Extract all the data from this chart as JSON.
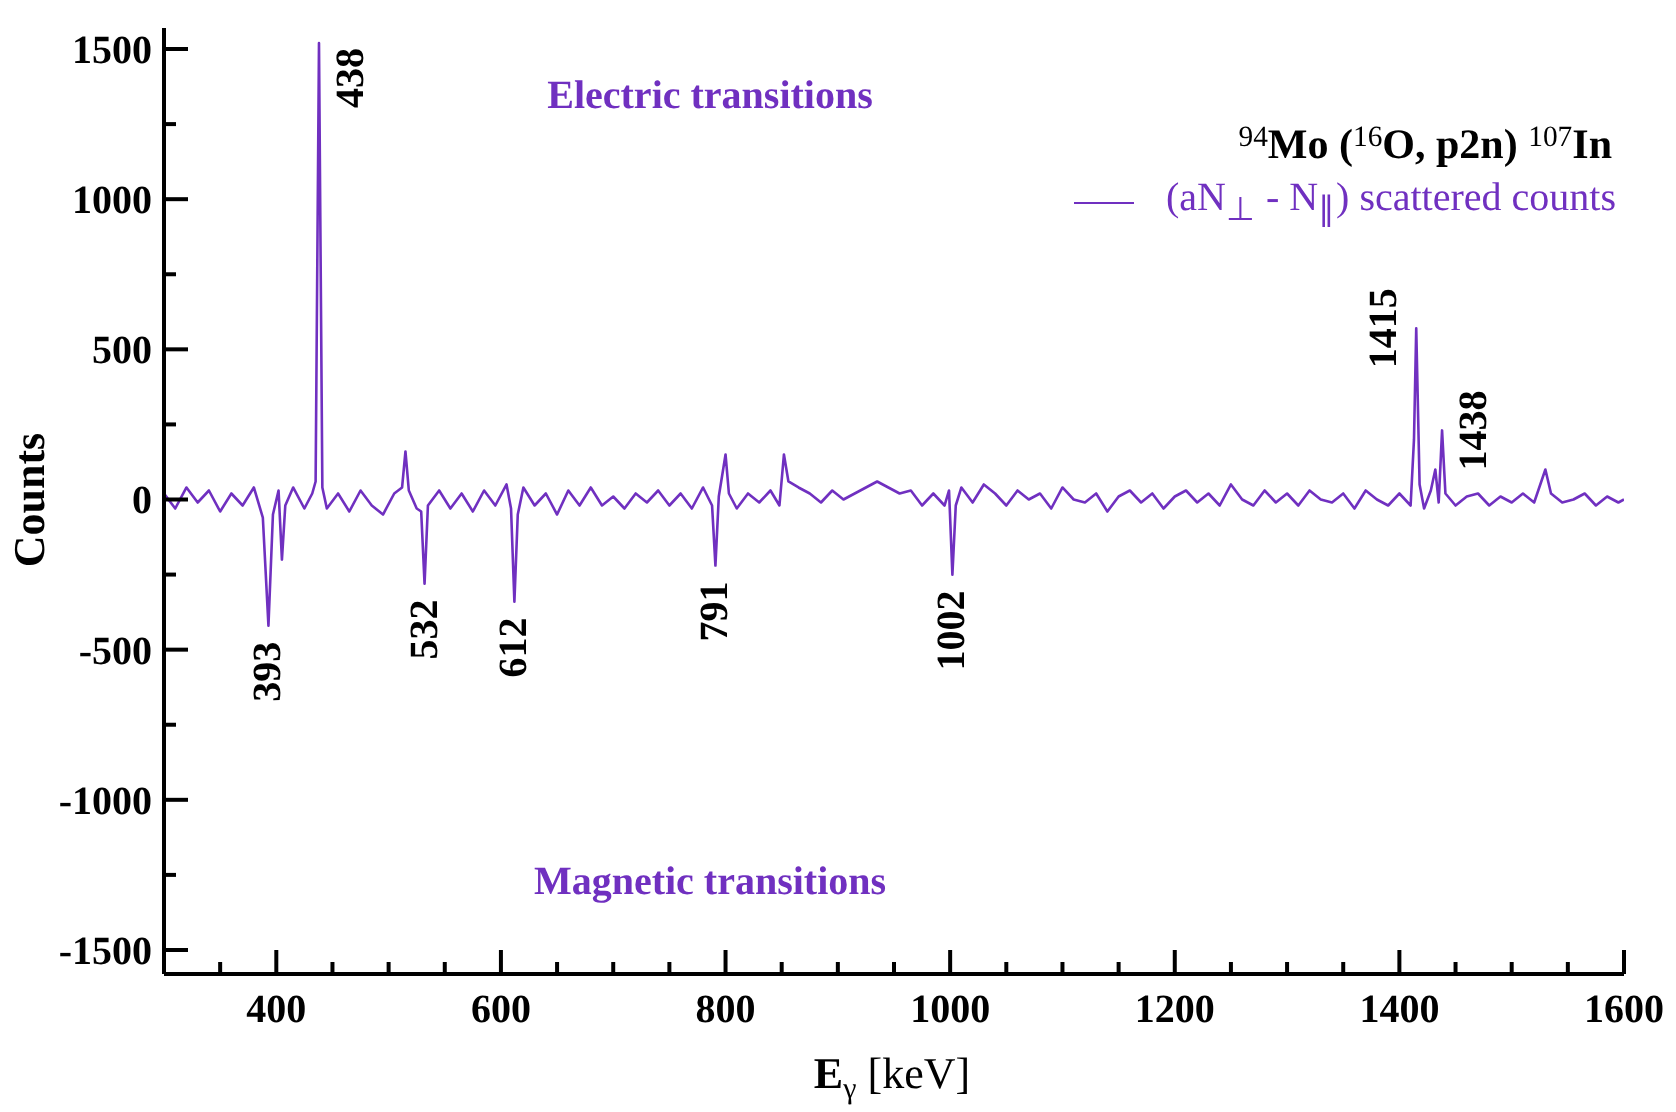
{
  "chart_data": {
    "type": "line",
    "title": "$^{94}$Mo ($^{16}$O, p2n) $^{107}$In",
    "xlabel": "E$_{γ}$ [keV]",
    "ylabel": "Counts",
    "annotations": [
      "Electric transitions",
      "Magnetic transitions",
      {
        "text": "438",
        "x": 438,
        "y": 1520
      },
      {
        "text": "393",
        "x": 393,
        "y": -420
      },
      {
        "text": "532",
        "x": 532,
        "y": -280
      },
      {
        "text": "612",
        "x": 612,
        "y": -340
      },
      {
        "text": "791",
        "x": 791,
        "y": -220
      },
      {
        "text": "1002",
        "x": 1002,
        "y": -250
      },
      {
        "text": "1415",
        "x": 1415,
        "y": 570
      },
      {
        "text": "1438",
        "x": 1438,
        "y": 230
      }
    ],
    "xlim": [
      300,
      1600
    ],
    "xticks": [
      {
        "value": 350,
        "label": null
      },
      400,
      {
        "value": 450,
        "label": null
      },
      {
        "value": 500,
        "label": null
      },
      {
        "value": 550,
        "label": null
      },
      600,
      {
        "value": 650,
        "label": null
      },
      {
        "value": 700,
        "label": null
      },
      {
        "value": 750,
        "label": null
      },
      800,
      {
        "value": 850,
        "label": null
      },
      {
        "value": 900,
        "label": null
      },
      {
        "value": 950,
        "label": null
      },
      1000,
      {
        "value": 1050,
        "label": null
      },
      {
        "value": 1100,
        "label": null
      },
      {
        "value": 1150,
        "label": null
      },
      1200,
      {
        "value": 1250,
        "label": null
      },
      {
        "value": 1300,
        "label": null
      },
      {
        "value": 1350,
        "label": null
      },
      1400,
      {
        "value": 1450,
        "label": null
      },
      {
        "value": 1500,
        "label": null
      },
      {
        "value": 1550,
        "label": null
      },
      1600
    ],
    "ylim": [
      -1580,
      1570
    ],
    "yticks": [
      -1500,
      {
        "value": -1250,
        "label": null
      },
      -1000,
      {
        "value": -750,
        "label": null
      },
      -500,
      {
        "value": -250,
        "label": null
      },
      0,
      {
        "value": 250,
        "label": null
      },
      500,
      {
        "value": 750,
        "label": null
      },
      1000,
      {
        "value": 1250,
        "label": null
      },
      1500
    ],
    "legend": "top right",
    "marker": "none",
    "line_style": "solid",
    "series": [
      {
        "name": "(aN$_{⊥}$ - N$_{∥}$)  scattered counts",
        "color": "#7030c0",
        "x": [
          300,
          310,
          320,
          330,
          340,
          350,
          360,
          370,
          380,
          388,
          393,
          397,
          402,
          405,
          408,
          415,
          425,
          432,
          435,
          438,
          441,
          445,
          455,
          465,
          475,
          485,
          495,
          505,
          512,
          515,
          518,
          525,
          529,
          532,
          535,
          545,
          555,
          565,
          575,
          585,
          595,
          605,
          609,
          612,
          615,
          620,
          630,
          640,
          650,
          660,
          670,
          680,
          690,
          700,
          710,
          720,
          730,
          740,
          750,
          760,
          770,
          780,
          788,
          791,
          794,
          800,
          803,
          810,
          820,
          830,
          840,
          848,
          852,
          856,
          865,
          875,
          885,
          895,
          905,
          915,
          925,
          935,
          945,
          955,
          965,
          975,
          985,
          995,
          999,
          1002,
          1005,
          1010,
          1020,
          1030,
          1040,
          1050,
          1060,
          1070,
          1080,
          1090,
          1100,
          1110,
          1120,
          1130,
          1140,
          1150,
          1160,
          1170,
          1180,
          1190,
          1200,
          1210,
          1220,
          1230,
          1240,
          1250,
          1260,
          1270,
          1280,
          1290,
          1300,
          1310,
          1320,
          1330,
          1340,
          1350,
          1360,
          1370,
          1380,
          1390,
          1400,
          1410,
          1413,
          1415,
          1418,
          1422,
          1428,
          1432,
          1435,
          1438,
          1441,
          1450,
          1460,
          1470,
          1480,
          1490,
          1500,
          1510,
          1520,
          1530,
          1535,
          1545,
          1555,
          1565,
          1575,
          1585,
          1595,
          1600
        ],
        "values": [
          20,
          -30,
          40,
          -10,
          30,
          -40,
          20,
          -20,
          40,
          -60,
          -420,
          -50,
          30,
          -200,
          -20,
          40,
          -30,
          20,
          60,
          1520,
          40,
          -30,
          20,
          -40,
          30,
          -20,
          -50,
          20,
          40,
          160,
          30,
          -30,
          -40,
          -280,
          -20,
          30,
          -30,
          20,
          -40,
          30,
          -20,
          50,
          -30,
          -340,
          -50,
          40,
          -20,
          20,
          -50,
          30,
          -20,
          40,
          -20,
          10,
          -30,
          20,
          -10,
          30,
          -20,
          20,
          -30,
          40,
          -20,
          -220,
          10,
          150,
          20,
          -30,
          20,
          -10,
          30,
          -20,
          150,
          60,
          40,
          20,
          -10,
          30,
          0,
          20,
          40,
          60,
          40,
          20,
          30,
          -20,
          20,
          -20,
          30,
          -250,
          -20,
          40,
          -10,
          50,
          20,
          -20,
          30,
          0,
          20,
          -30,
          40,
          0,
          -10,
          20,
          -40,
          10,
          30,
          -10,
          20,
          -30,
          10,
          30,
          -10,
          20,
          -20,
          50,
          0,
          -20,
          30,
          -10,
          20,
          -20,
          30,
          0,
          -10,
          20,
          -30,
          30,
          0,
          -20,
          20,
          -20,
          200,
          570,
          50,
          -30,
          30,
          100,
          -10,
          230,
          20,
          -20,
          10,
          20,
          -20,
          10,
          -10,
          20,
          -10,
          100,
          20,
          -10,
          0,
          20,
          -20,
          10,
          -10,
          0
        ]
      }
    ]
  }
}
